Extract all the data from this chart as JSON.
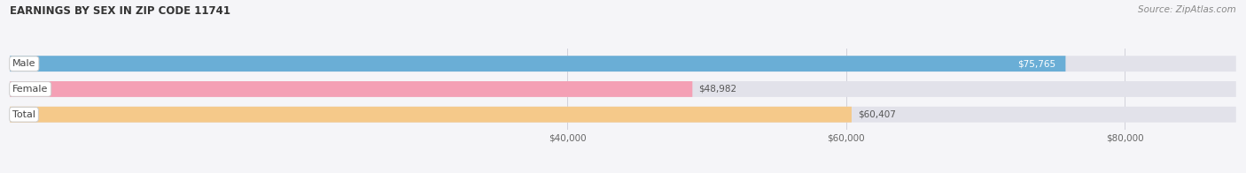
{
  "title": "EARNINGS BY SEX IN ZIP CODE 11741",
  "source": "Source: ZipAtlas.com",
  "categories": [
    "Male",
    "Female",
    "Total"
  ],
  "values": [
    75765,
    48982,
    60407
  ],
  "bar_colors": [
    "#6aaed6",
    "#f4a0b5",
    "#f5c98a"
  ],
  "bg_bar_color": "#e2e2ea",
  "value_label_inside": [
    true,
    false,
    false
  ],
  "value_label_colors_inside": [
    "#ffffff",
    "#555555",
    "#555555"
  ],
  "xlim_min": 0,
  "xlim_max": 88000,
  "xticks": [
    40000,
    60000,
    80000
  ],
  "xtick_labels": [
    "$40,000",
    "$60,000",
    "$80,000"
  ],
  "figsize": [
    14.06,
    1.96
  ],
  "dpi": 100,
  "title_fontsize": 8.5,
  "source_fontsize": 7.5,
  "bar_label_fontsize": 7.5,
  "cat_label_fontsize": 8,
  "xtick_fontsize": 7.5,
  "bar_height": 0.62,
  "bar_gap": 0.38,
  "bg_color": "#f5f5f8",
  "grid_color": "#d0d0da",
  "cat_label_bg": "#ffffff",
  "cat_label_border": "#cccccc"
}
